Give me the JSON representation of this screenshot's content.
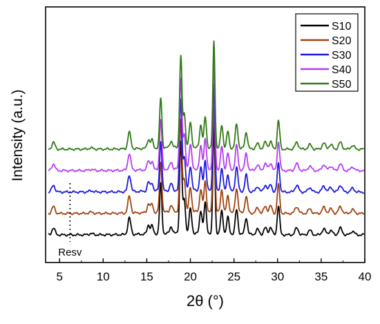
{
  "chart_data": {
    "type": "line",
    "xlabel": "2θ (°)",
    "ylabel": "Intensity (a.u.)",
    "xlim": [
      3.4,
      40
    ],
    "x_ticks": [
      5,
      10,
      15,
      20,
      25,
      30,
      35,
      40
    ],
    "x_tick_labels": [
      "5",
      "10",
      "15",
      "20",
      "25",
      "30",
      "35",
      "40"
    ],
    "y_ticks": [],
    "grid": false,
    "legend_position": "top-right",
    "offset_between_traces": 1,
    "annotation": {
      "text": "Resv",
      "x": 6.2
    },
    "peaks": [
      {
        "x": 4.3,
        "h": 0.45,
        "w": 0.18
      },
      {
        "x": 8.6,
        "h": 0.08,
        "w": 0.25
      },
      {
        "x": 13.0,
        "h": 1.1,
        "w": 0.17
      },
      {
        "x": 15.2,
        "h": 0.6,
        "w": 0.15
      },
      {
        "x": 15.6,
        "h": 0.55,
        "w": 0.13
      },
      {
        "x": 16.6,
        "h": 3.3,
        "w": 0.13
      },
      {
        "x": 17.8,
        "h": 0.45,
        "w": 0.15
      },
      {
        "x": 18.9,
        "h": 6.0,
        "w": 0.13
      },
      {
        "x": 19.3,
        "h": 2.2,
        "w": 0.14
      },
      {
        "x": 20.0,
        "h": 1.6,
        "w": 0.15
      },
      {
        "x": 21.2,
        "h": 1.5,
        "w": 0.14
      },
      {
        "x": 21.7,
        "h": 2.0,
        "w": 0.14
      },
      {
        "x": 22.7,
        "h": 7.0,
        "w": 0.12
      },
      {
        "x": 23.6,
        "h": 1.5,
        "w": 0.14
      },
      {
        "x": 24.3,
        "h": 1.1,
        "w": 0.14
      },
      {
        "x": 25.3,
        "h": 1.6,
        "w": 0.15
      },
      {
        "x": 26.4,
        "h": 1.1,
        "w": 0.15
      },
      {
        "x": 27.7,
        "h": 0.35,
        "w": 0.18
      },
      {
        "x": 28.6,
        "h": 0.45,
        "w": 0.18
      },
      {
        "x": 29.2,
        "h": 0.5,
        "w": 0.16
      },
      {
        "x": 30.1,
        "h": 1.9,
        "w": 0.14
      },
      {
        "x": 32.2,
        "h": 0.45,
        "w": 0.2
      },
      {
        "x": 33.7,
        "h": 0.3,
        "w": 0.2
      },
      {
        "x": 35.3,
        "h": 0.4,
        "w": 0.2
      },
      {
        "x": 36.1,
        "h": 0.3,
        "w": 0.2
      },
      {
        "x": 37.2,
        "h": 0.45,
        "w": 0.2
      },
      {
        "x": 38.6,
        "h": 0.25,
        "w": 0.2
      }
    ],
    "series": [
      {
        "name": "S10",
        "color": "#000000",
        "offset": 0
      },
      {
        "name": "S20",
        "color": "#a0420f",
        "offset": 1
      },
      {
        "name": "S30",
        "color": "#1a16e0",
        "offset": 2
      },
      {
        "name": "S40",
        "color": "#b43cf0",
        "offset": 3
      },
      {
        "name": "S50",
        "color": "#2f7a14",
        "offset": 4
      }
    ]
  }
}
